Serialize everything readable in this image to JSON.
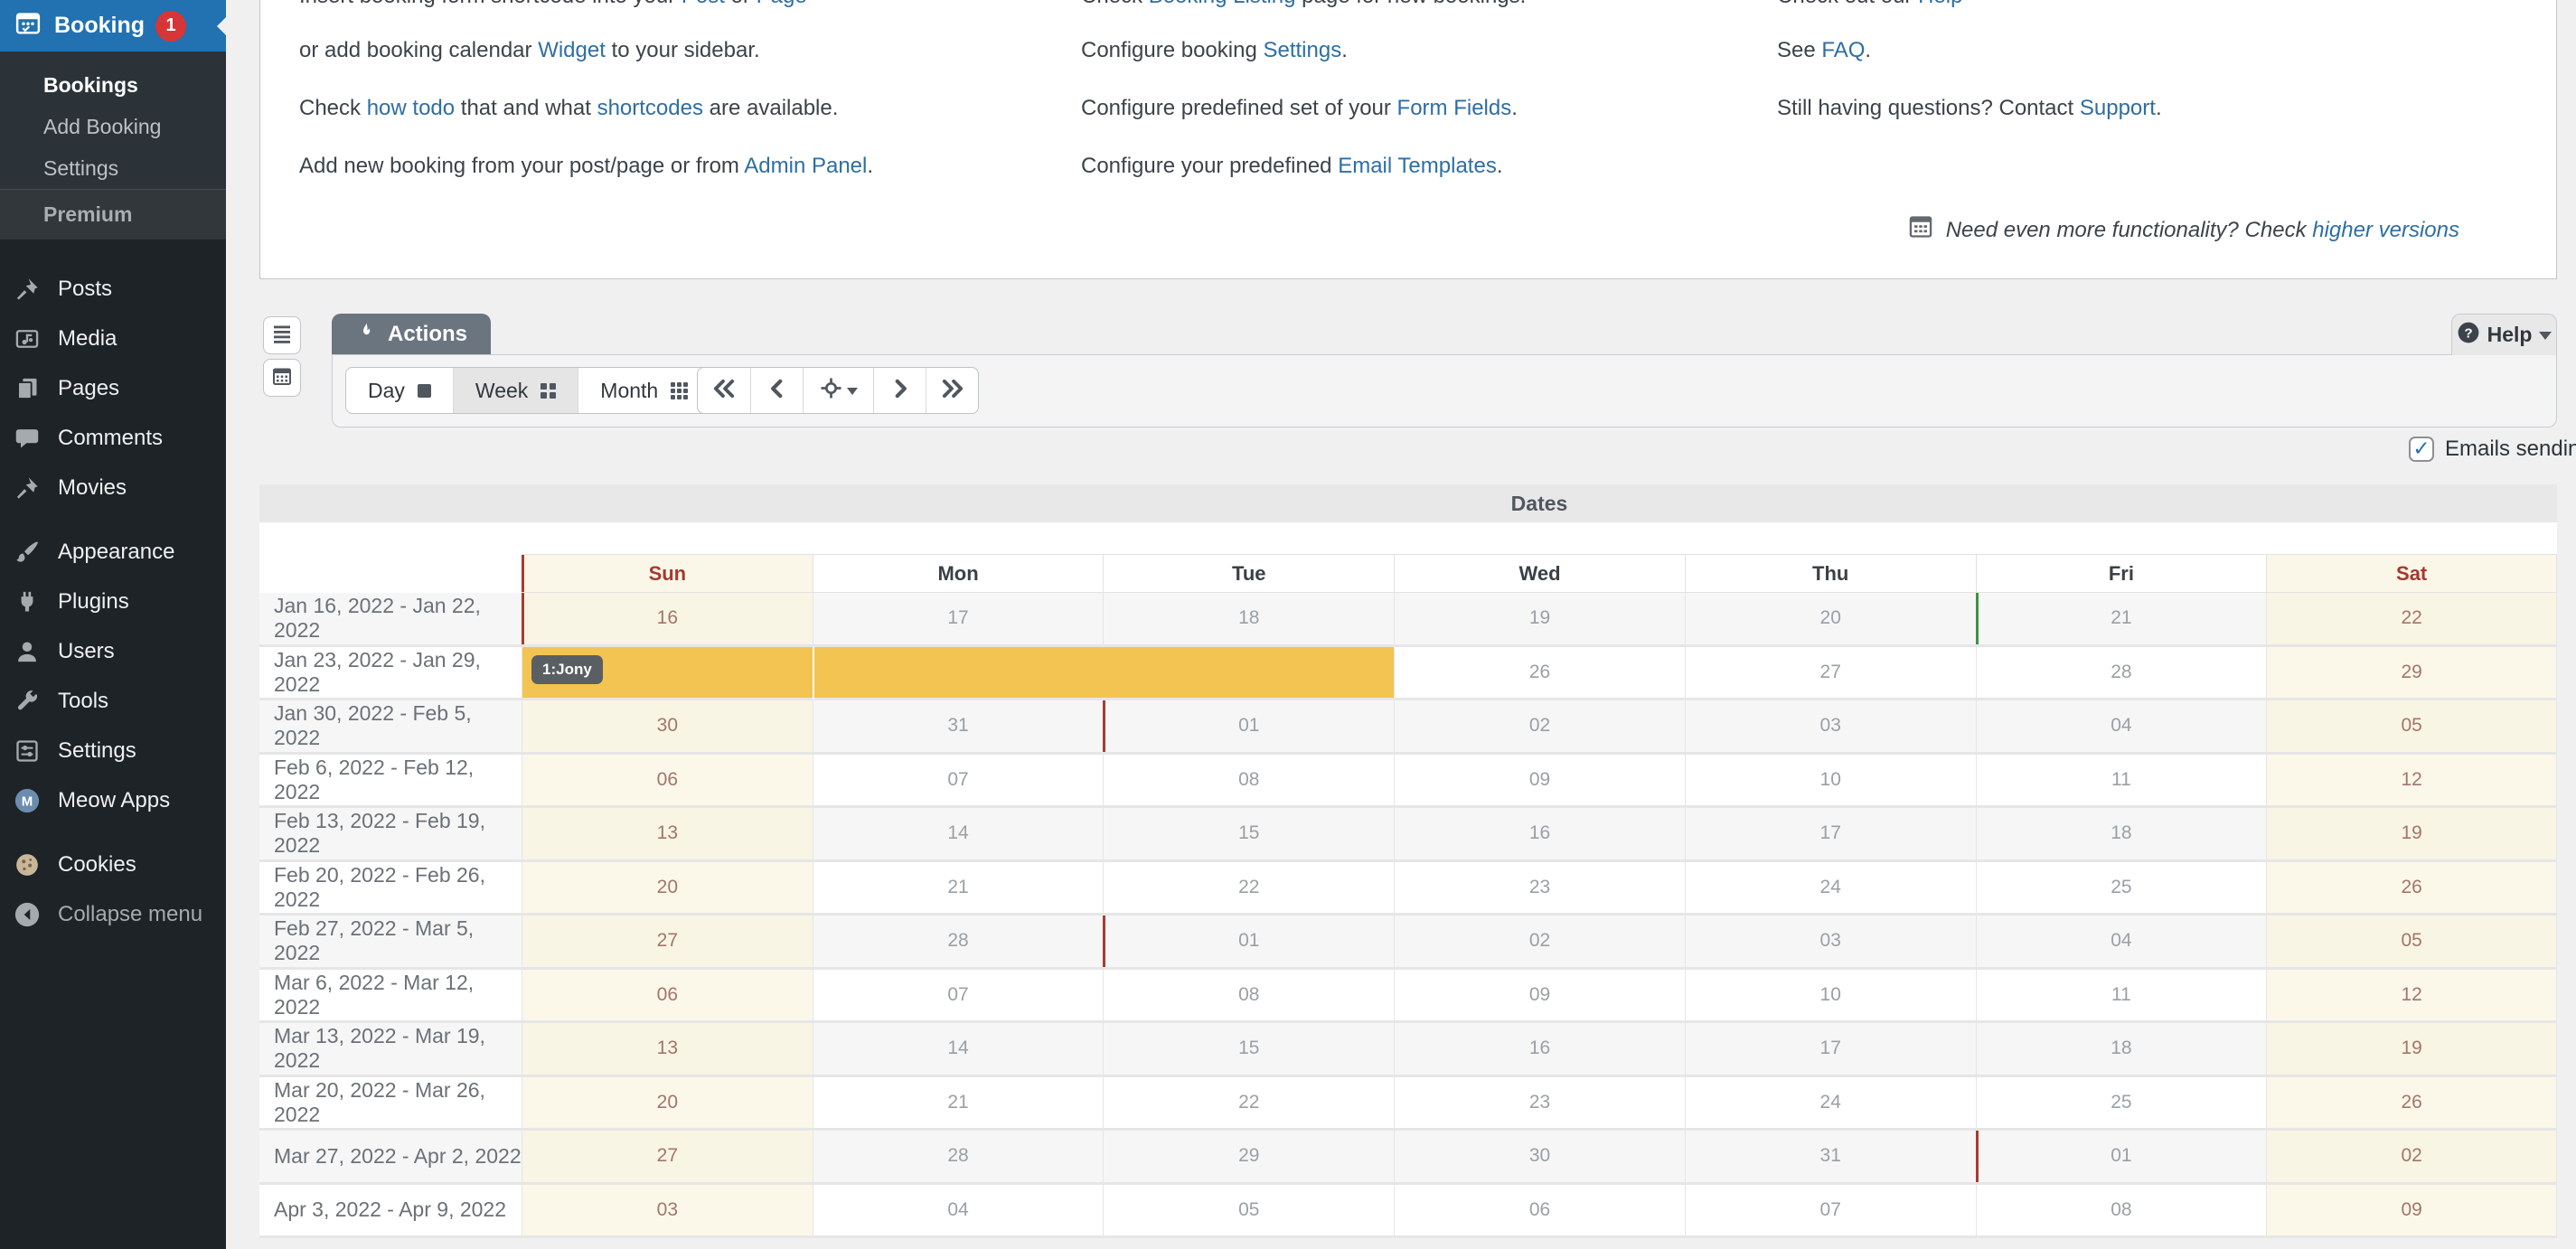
{
  "sidebar": {
    "booking": {
      "label": "Booking",
      "badge": "1"
    },
    "submenu": [
      {
        "label": "Bookings",
        "active": true
      },
      {
        "label": "Add Booking",
        "active": false
      },
      {
        "label": "Settings",
        "active": false
      }
    ],
    "premium_label": "Premium",
    "menu": [
      {
        "label": "Posts",
        "icon": "pin",
        "sep": false,
        "muted": false
      },
      {
        "label": "Media",
        "icon": "media",
        "sep": false,
        "muted": false
      },
      {
        "label": "Pages",
        "icon": "pages",
        "sep": false,
        "muted": false
      },
      {
        "label": "Comments",
        "icon": "comments",
        "sep": false,
        "muted": false
      },
      {
        "label": "Movies",
        "icon": "pin",
        "sep": false,
        "muted": false
      },
      {
        "label": "Appearance",
        "icon": "brush",
        "sep": true,
        "muted": false
      },
      {
        "label": "Plugins",
        "icon": "plug",
        "sep": false,
        "muted": false
      },
      {
        "label": "Users",
        "icon": "user",
        "sep": false,
        "muted": false
      },
      {
        "label": "Tools",
        "icon": "wrench",
        "sep": false,
        "muted": false
      },
      {
        "label": "Settings",
        "icon": "sliders",
        "sep": false,
        "muted": false
      },
      {
        "label": "Meow Apps",
        "icon": "meow",
        "sep": false,
        "muted": false
      },
      {
        "label": "Cookies",
        "icon": "cookie",
        "sep": true,
        "muted": false
      },
      {
        "label": "Collapse menu",
        "icon": "collapse",
        "sep": false,
        "muted": true
      }
    ]
  },
  "help": {
    "columns": [
      {
        "lines": [
          {
            "clipped": true,
            "segments": [
              {
                "text": "Insert booking form shortcode into your ",
                "link": false
              },
              {
                "text": "Post",
                "link": true
              },
              {
                "text": " or ",
                "link": false
              },
              {
                "text": "Page",
                "link": true
              }
            ]
          },
          {
            "clipped": false,
            "segments": [
              {
                "text": "or add booking calendar ",
                "link": false
              },
              {
                "text": "Widget",
                "link": true
              },
              {
                "text": " to your sidebar.",
                "link": false
              }
            ]
          },
          {
            "clipped": false,
            "segments": [
              {
                "text": "Check ",
                "link": false
              },
              {
                "text": "how todo",
                "link": true
              },
              {
                "text": " that and what ",
                "link": false
              },
              {
                "text": "shortcodes",
                "link": true
              },
              {
                "text": " are available.",
                "link": false
              }
            ]
          },
          {
            "clipped": false,
            "segments": [
              {
                "text": "Add new booking from your post/page or from ",
                "link": false
              },
              {
                "text": "Admin Panel",
                "link": true
              },
              {
                "text": ".",
                "link": false
              }
            ]
          }
        ]
      },
      {
        "lines": [
          {
            "clipped": true,
            "segments": [
              {
                "text": "Check ",
                "link": false
              },
              {
                "text": "Booking Listing",
                "link": true
              },
              {
                "text": " page for new bookings.",
                "link": false
              }
            ]
          },
          {
            "clipped": false,
            "segments": [
              {
                "text": "Configure booking ",
                "link": false
              },
              {
                "text": "Settings",
                "link": true
              },
              {
                "text": ".",
                "link": false
              }
            ]
          },
          {
            "clipped": false,
            "segments": [
              {
                "text": "Configure predefined set of your ",
                "link": false
              },
              {
                "text": "Form Fields",
                "link": true
              },
              {
                "text": ".",
                "link": false
              }
            ]
          },
          {
            "clipped": false,
            "segments": [
              {
                "text": "Configure your predefined ",
                "link": false
              },
              {
                "text": "Email Templates",
                "link": true
              },
              {
                "text": ".",
                "link": false
              }
            ]
          }
        ]
      },
      {
        "lines": [
          {
            "clipped": true,
            "segments": [
              {
                "text": "Check out our ",
                "link": false
              },
              {
                "text": "Help",
                "link": true
              }
            ]
          },
          {
            "clipped": false,
            "segments": [
              {
                "text": "See ",
                "link": false
              },
              {
                "text": "FAQ",
                "link": true
              },
              {
                "text": ".",
                "link": false
              }
            ]
          },
          {
            "clipped": false,
            "segments": [
              {
                "text": "Still having questions? Contact ",
                "link": false
              },
              {
                "text": "Support",
                "link": true
              },
              {
                "text": ".",
                "link": false
              }
            ]
          }
        ]
      }
    ],
    "note_segments": [
      {
        "text": "Need even more functionality? Check ",
        "link": false
      },
      {
        "text": "higher versions",
        "link": true
      }
    ]
  },
  "toolbar": {
    "actions_label": "Actions",
    "views": [
      {
        "label": "Day",
        "icon": "sq1",
        "active": false
      },
      {
        "label": "Week",
        "icon": "sq4",
        "active": true
      },
      {
        "label": "Month",
        "icon": "sq9",
        "active": false
      }
    ],
    "help_label": "Help",
    "emails_label": "Emails sending",
    "emails_checked": true
  },
  "calendar": {
    "section_title": "Dates",
    "day_headers": [
      "Sun",
      "Mon",
      "Tue",
      "Wed",
      "Thu",
      "Fri",
      "Sat"
    ],
    "rows": [
      {
        "label": "Jan 16, 2022 - Jan 22, 2022",
        "days": [
          "16",
          "17",
          "18",
          "19",
          "20",
          "21",
          "22"
        ],
        "start_line_day": 0,
        "today_line_day": 5
      },
      {
        "label": "Jan 23, 2022 - Jan 29, 2022",
        "days": [
          "",
          "",
          "",
          "26",
          "27",
          "28",
          "29"
        ],
        "booking": {
          "badge": "1:Jony",
          "span_start": 0,
          "span_end": 2
        }
      },
      {
        "label": "Jan 30, 2022 - Feb 5, 2022",
        "days": [
          "30",
          "31",
          "01",
          "02",
          "03",
          "04",
          "05"
        ],
        "month_line_day": 2
      },
      {
        "label": "Feb 6, 2022 - Feb 12, 2022",
        "days": [
          "06",
          "07",
          "08",
          "09",
          "10",
          "11",
          "12"
        ]
      },
      {
        "label": "Feb 13, 2022 - Feb 19, 2022",
        "days": [
          "13",
          "14",
          "15",
          "16",
          "17",
          "18",
          "19"
        ]
      },
      {
        "label": "Feb 20, 2022 - Feb 26, 2022",
        "days": [
          "20",
          "21",
          "22",
          "23",
          "24",
          "25",
          "26"
        ]
      },
      {
        "label": "Feb 27, 2022 - Mar 5, 2022",
        "days": [
          "27",
          "28",
          "01",
          "02",
          "03",
          "04",
          "05"
        ],
        "month_line_day": 2
      },
      {
        "label": "Mar 6, 2022 - Mar 12, 2022",
        "days": [
          "06",
          "07",
          "08",
          "09",
          "10",
          "11",
          "12"
        ]
      },
      {
        "label": "Mar 13, 2022 - Mar 19, 2022",
        "days": [
          "13",
          "14",
          "15",
          "16",
          "17",
          "18",
          "19"
        ]
      },
      {
        "label": "Mar 20, 2022 - Mar 26, 2022",
        "days": [
          "20",
          "21",
          "22",
          "23",
          "24",
          "25",
          "26"
        ]
      },
      {
        "label": "Mar 27, 2022 - Apr 2, 2022",
        "days": [
          "27",
          "28",
          "29",
          "30",
          "31",
          "01",
          "02"
        ],
        "month_line_day": 5
      },
      {
        "label": "Apr 3, 2022 - Apr 9, 2022",
        "days": [
          "03",
          "04",
          "05",
          "06",
          "07",
          "08",
          "09"
        ]
      }
    ]
  },
  "colors": {
    "sidebar_active": "#2271b1",
    "badge_red": "#d63638",
    "booking_yellow": "#f3c452",
    "month_line_red": "#a93b2d",
    "today_line_green": "#3f9142",
    "weekend_bg": "#fbf8e9",
    "link_blue": "#2e6ea4"
  }
}
